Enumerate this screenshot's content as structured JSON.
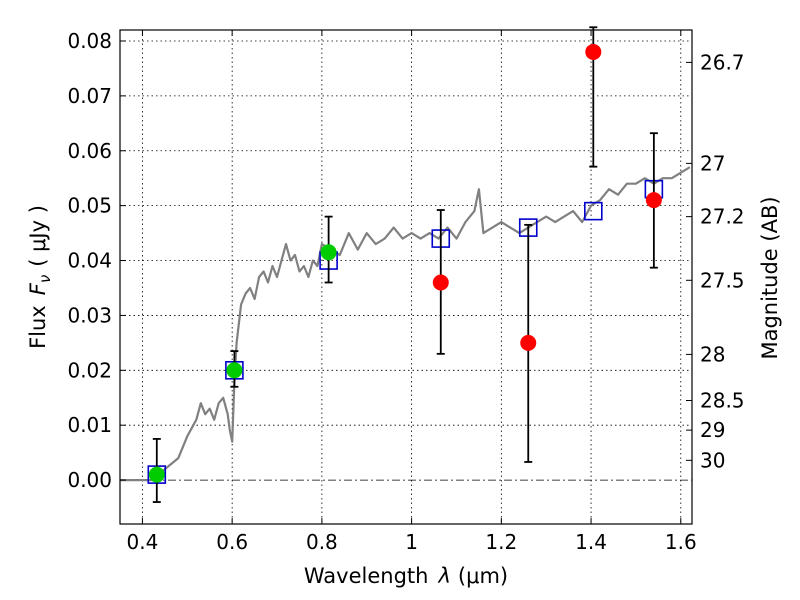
{
  "chart_data": {
    "type": "scatter",
    "title": "",
    "xlabel_text": "Wavelength",
    "xlabel_symbol": "λ",
    "xlabel_unit": "(μm)",
    "ylabel_text": "Flux",
    "ylabel_symbol": "F",
    "ylabel_sub": "ν",
    "ylabel_unit": "( μJy )",
    "y2label": "Magnitude (AB)",
    "xlim": [
      0.35,
      1.625
    ],
    "ylim": [
      -0.008,
      0.082
    ],
    "grid": true,
    "x_ticks": [
      0.4,
      0.6,
      0.8,
      1.0,
      1.2,
      1.4,
      1.6
    ],
    "x_tick_labels": [
      "0.4",
      "0.6",
      "0.8",
      "1",
      "1.2",
      "1.4",
      "1.6"
    ],
    "y_ticks": [
      0.0,
      0.01,
      0.02,
      0.03,
      0.04,
      0.05,
      0.06,
      0.07,
      0.08
    ],
    "y_tick_labels": [
      "0.00",
      "0.01",
      "0.02",
      "0.03",
      "0.04",
      "0.05",
      "0.06",
      "0.07",
      "0.08"
    ],
    "mag_ticks": [
      {
        "label": "26.7",
        "flux": 0.0761
      },
      {
        "label": "27",
        "flux": 0.0577
      },
      {
        "label": "27.2",
        "flux": 0.048
      },
      {
        "label": "27.5",
        "flux": 0.0364
      },
      {
        "label": "28",
        "flux": 0.0229
      },
      {
        "label": "28.5",
        "flux": 0.0145
      },
      {
        "label": "29",
        "flux": 0.0091
      },
      {
        "label": "30",
        "flux": 0.0036
      }
    ],
    "series": [
      {
        "kind": "line",
        "color": "#808080",
        "x": [
          0.35,
          0.42,
          0.45,
          0.48,
          0.5,
          0.52,
          0.53,
          0.54,
          0.55,
          0.56,
          0.57,
          0.58,
          0.59,
          0.595,
          0.6,
          0.605,
          0.61,
          0.62,
          0.63,
          0.64,
          0.65,
          0.66,
          0.67,
          0.68,
          0.69,
          0.7,
          0.71,
          0.72,
          0.73,
          0.74,
          0.75,
          0.76,
          0.77,
          0.78,
          0.79,
          0.8,
          0.82,
          0.84,
          0.86,
          0.88,
          0.9,
          0.92,
          0.94,
          0.96,
          0.98,
          1.0,
          1.02,
          1.04,
          1.06,
          1.08,
          1.1,
          1.12,
          1.14,
          1.15,
          1.16,
          1.18,
          1.2,
          1.22,
          1.24,
          1.26,
          1.28,
          1.3,
          1.32,
          1.34,
          1.36,
          1.38,
          1.4,
          1.42,
          1.44,
          1.46,
          1.48,
          1.5,
          1.52,
          1.54,
          1.56,
          1.58,
          1.6,
          1.62
        ],
        "y": [
          0.0,
          0.0,
          0.002,
          0.004,
          0.008,
          0.011,
          0.014,
          0.012,
          0.013,
          0.011,
          0.014,
          0.015,
          0.012,
          0.009,
          0.007,
          0.018,
          0.025,
          0.032,
          0.034,
          0.035,
          0.033,
          0.037,
          0.038,
          0.036,
          0.039,
          0.037,
          0.04,
          0.043,
          0.04,
          0.041,
          0.038,
          0.039,
          0.037,
          0.04,
          0.039,
          0.043,
          0.042,
          0.041,
          0.045,
          0.042,
          0.045,
          0.043,
          0.044,
          0.046,
          0.044,
          0.045,
          0.044,
          0.045,
          0.044,
          0.046,
          0.044,
          0.047,
          0.049,
          0.053,
          0.045,
          0.046,
          0.047,
          0.046,
          0.045,
          0.046,
          0.047,
          0.048,
          0.047,
          0.048,
          0.049,
          0.047,
          0.05,
          0.051,
          0.053,
          0.052,
          0.054,
          0.054,
          0.055,
          0.054,
          0.055,
          0.055,
          0.056,
          0.057
        ]
      },
      {
        "kind": "squares",
        "color": "#0000cc",
        "x": [
          0.432,
          0.605,
          0.815,
          1.065,
          1.26,
          1.405,
          1.54
        ],
        "y": [
          0.001,
          0.02,
          0.04,
          0.044,
          0.046,
          0.049,
          0.053
        ]
      },
      {
        "kind": "points",
        "color": "#00cc00",
        "x": [
          0.432,
          0.605,
          0.815
        ],
        "y": [
          0.001,
          0.02,
          0.0415
        ],
        "err_low": [
          0.005,
          0.003,
          0.0055
        ],
        "err_high": [
          0.0065,
          0.0035,
          0.0065
        ]
      },
      {
        "kind": "points",
        "color": "#ff0000",
        "x": [
          1.065,
          1.26,
          1.405,
          1.54
        ],
        "y": [
          0.036,
          0.025,
          0.078,
          0.051
        ],
        "err_low": [
          0.013,
          0.0217,
          0.0209,
          0.0123
        ],
        "err_high": [
          0.0132,
          0.0215,
          0.0045,
          0.0122
        ]
      }
    ]
  }
}
